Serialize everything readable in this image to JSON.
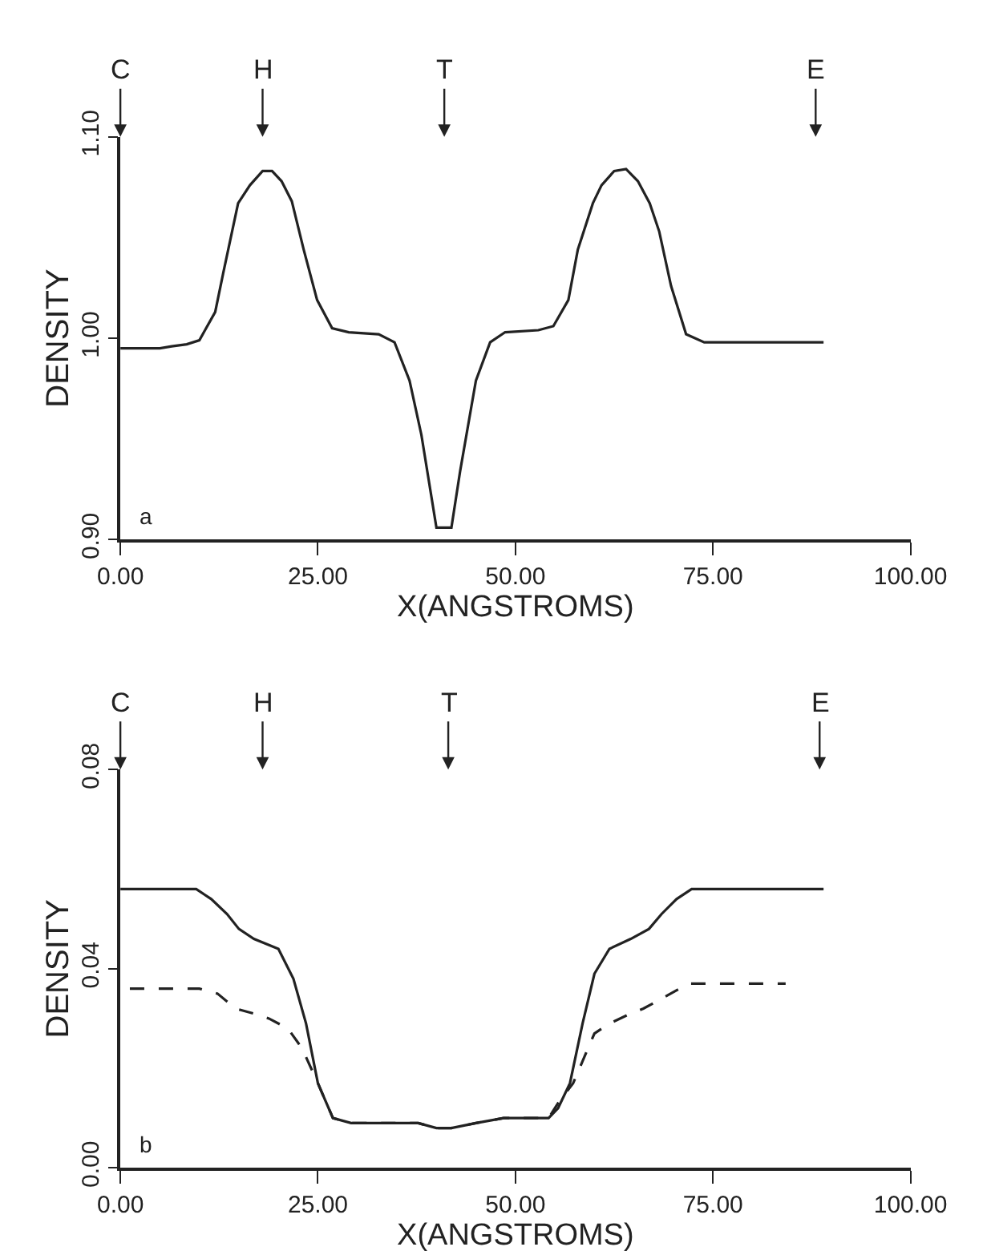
{
  "chart_data": [
    {
      "type": "line",
      "xlabel": "X(ANGSTROMS)",
      "ylabel": "DENSITY",
      "xlim": [
        0,
        100
      ],
      "ylim": [
        0.9,
        1.1
      ],
      "xticks": [
        {
          "value": 0,
          "label": "0.00"
        },
        {
          "value": 25,
          "label": "25.00"
        },
        {
          "value": 50,
          "label": "50.00"
        },
        {
          "value": 75,
          "label": "75.00"
        },
        {
          "value": 100,
          "label": "100.00"
        }
      ],
      "yticks": [
        {
          "value": 0.9,
          "label": "0.90"
        },
        {
          "value": 1.0,
          "label": "1.00"
        },
        {
          "value": 1.1,
          "label": "1.10"
        }
      ],
      "marker": "none",
      "series": [
        {
          "color": "#222222",
          "line_style": "solid",
          "x": [
            0,
            5,
            6.5,
            8.4,
            10,
            12,
            13,
            14.9,
            16.4,
            18,
            19.2,
            20.4,
            21.7,
            23.2,
            24.9,
            26.8,
            28.9,
            32.7,
            34.7,
            36.6,
            38.1,
            40,
            41.9,
            43,
            45,
            46.8,
            48.7,
            52.9,
            54.8,
            56.7,
            57.9,
            59.8,
            60.9,
            62.5,
            64,
            65.5,
            67,
            68.2,
            69.7,
            71.6,
            73.9,
            89
          ],
          "values": [
            0.995,
            0.995,
            0.996,
            0.997,
            0.999,
            1.013,
            1.032,
            1.067,
            1.076,
            1.083,
            1.083,
            1.078,
            1.068,
            1.044,
            1.019,
            1.005,
            1.003,
            1.002,
            0.998,
            0.979,
            0.952,
            0.906,
            0.906,
            0.934,
            0.979,
            0.998,
            1.003,
            1.004,
            1.006,
            1.019,
            1.044,
            1.067,
            1.076,
            1.083,
            1.084,
            1.078,
            1.067,
            1.053,
            1.026,
            1.002,
            0.998,
            0.998
          ]
        }
      ],
      "annotations": [
        "a"
      ],
      "ref_lines": [
        {
          "axis": "x",
          "value": 0,
          "label": "C"
        },
        {
          "axis": "x",
          "value": 18,
          "label": "H"
        },
        {
          "axis": "x",
          "value": 41,
          "label": "T"
        },
        {
          "axis": "x",
          "value": 88,
          "label": "E"
        }
      ]
    },
    {
      "type": "line",
      "xlabel": "X(ANGSTROMS)",
      "ylabel": "DENSITY",
      "xlim": [
        0,
        100
      ],
      "ylim": [
        0,
        0.08
      ],
      "xticks": [
        {
          "value": 0,
          "label": "0.00"
        },
        {
          "value": 25,
          "label": "25.00"
        },
        {
          "value": 50,
          "label": "50.00"
        },
        {
          "value": 75,
          "label": "75.00"
        },
        {
          "value": 100,
          "label": "100.00"
        }
      ],
      "yticks": [
        {
          "value": 0,
          "label": "0.00"
        },
        {
          "value": 0.04,
          "label": "0.04"
        },
        {
          "value": 0.08,
          "label": "0.08"
        }
      ],
      "marker": "none",
      "series": [
        {
          "color": "#222222",
          "line_style": "solid",
          "x": [
            0,
            9.6,
            11.5,
            13.5,
            15,
            16.9,
            20,
            21.9,
            23.5,
            25,
            26.9,
            29.2,
            34.6,
            37.7,
            40,
            41.9,
            45,
            48.5,
            54.2,
            55.4,
            56.9,
            58.5,
            60,
            61.9,
            64.6,
            66.9,
            68.5,
            70.4,
            72.3,
            89
          ],
          "values": [
            0.056,
            0.056,
            0.054,
            0.051,
            0.048,
            0.046,
            0.044,
            0.038,
            0.029,
            0.017,
            0.01,
            0.009,
            0.009,
            0.009,
            0.008,
            0.008,
            0.009,
            0.01,
            0.01,
            0.012,
            0.017,
            0.029,
            0.039,
            0.044,
            0.046,
            0.048,
            0.051,
            0.054,
            0.056,
            0.056
          ]
        },
        {
          "color": "#222222",
          "line_style": "dashed",
          "x": [
            1.2,
            10,
            12.3,
            14.6,
            16.9,
            18.8,
            21.2,
            23,
            25,
            26.9,
            29.2,
            34.6,
            37.7,
            40,
            41.9,
            45,
            48.5,
            54.2,
            55.4,
            57.3,
            60,
            61.9,
            64.6,
            66.2,
            68.5,
            71.9,
            84.2
          ],
          "values": [
            0.036,
            0.036,
            0.035,
            0.032,
            0.031,
            0.03,
            0.028,
            0.024,
            0.017,
            0.01,
            0.009,
            0.009,
            0.009,
            0.008,
            0.008,
            0.009,
            0.01,
            0.01,
            0.013,
            0.017,
            0.027,
            0.029,
            0.031,
            0.032,
            0.034,
            0.037,
            0.037
          ]
        }
      ],
      "annotations": [
        "b"
      ],
      "ref_lines": [
        {
          "axis": "x",
          "value": 0,
          "label": "C"
        },
        {
          "axis": "x",
          "value": 18,
          "label": "H"
        },
        {
          "axis": "x",
          "value": 41.5,
          "label": "T"
        },
        {
          "axis": "x",
          "value": 88.5,
          "label": "E"
        }
      ]
    }
  ]
}
